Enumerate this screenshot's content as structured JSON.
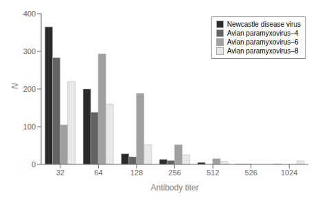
{
  "chart_data": {
    "type": "bar",
    "categories": [
      "32",
      "64",
      "128",
      "256",
      "512",
      "526",
      "1024"
    ],
    "series": [
      {
        "name": "Newcastle disease virus",
        "color": "#2b2b2b",
        "values": [
          365,
          200,
          28,
          13,
          5,
          1,
          1
        ]
      },
      {
        "name": "Avian paramyxovirus–4",
        "color": "#636363",
        "values": [
          283,
          138,
          20,
          10,
          0,
          1,
          0
        ]
      },
      {
        "name": "Avian paramyxovirus–6",
        "color": "#a0a0a0",
        "values": [
          105,
          293,
          188,
          52,
          15,
          0,
          0
        ]
      },
      {
        "name": "Avian paramyxovirus–8",
        "color": "#e8e8e8",
        "values": [
          220,
          160,
          52,
          25,
          8,
          0,
          9
        ]
      }
    ],
    "xlabel": "Antibody titer",
    "ylabel": "N",
    "ylim": [
      0,
      400
    ],
    "yticks": [
      0,
      100,
      200,
      300,
      400
    ],
    "grid": false,
    "legend": "upper right"
  }
}
